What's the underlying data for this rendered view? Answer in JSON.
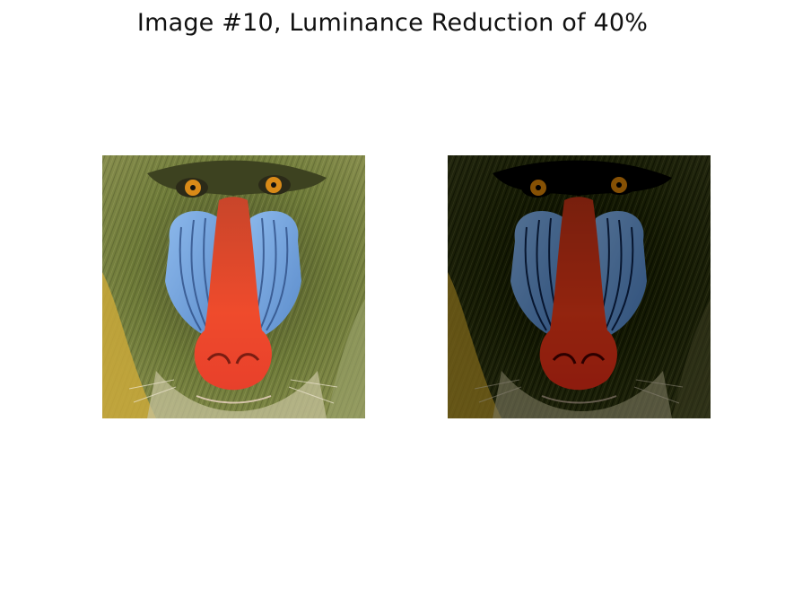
{
  "figure": {
    "title": "Image #10, Luminance Reduction of 40%"
  },
  "panels": [
    {
      "role": "original",
      "subject": "mandrill-face"
    },
    {
      "role": "luminance-reduced",
      "subject": "mandrill-face"
    }
  ],
  "colors": {
    "background": "#ffffff",
    "fur": "#6f7a36",
    "fur_dark": "#3a3f20",
    "cheek_blue": "#7aa9e0",
    "nose_red": "#e8452c",
    "eye_amber": "#d98a18",
    "beard_yellow": "#c9b13a"
  }
}
